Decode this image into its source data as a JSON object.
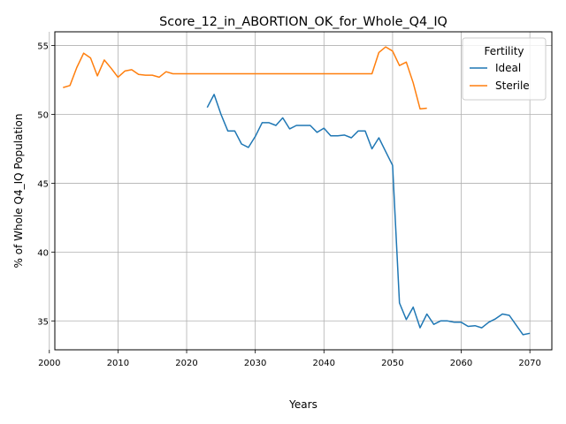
{
  "chart_data": {
    "type": "line",
    "title": "Score_12_in_ABORTION_OK_for_Whole_Q4_IQ",
    "xlabel": "Years",
    "ylabel": "% of Whole Q4_IQ Population",
    "xlim": [
      2000.8,
      2073.2
    ],
    "ylim": [
      32.9,
      56.0
    ],
    "xticks": [
      2000,
      2010,
      2020,
      2030,
      2040,
      2050,
      2060,
      2070
    ],
    "yticks": [
      35,
      40,
      45,
      50,
      55
    ],
    "grid": true,
    "legend": {
      "title": "Fertility",
      "placement": "top-right"
    },
    "series": [
      {
        "name": "Ideal",
        "color": "#1f77b4",
        "x": [
          2023,
          2024,
          2025,
          2026,
          2027,
          2028,
          2029,
          2030,
          2031,
          2032,
          2033,
          2034,
          2035,
          2036,
          2037,
          2038,
          2039,
          2040,
          2041,
          2042,
          2043,
          2044,
          2045,
          2046,
          2047,
          2048,
          2049,
          2050,
          2051,
          2052,
          2053,
          2054,
          2055,
          2056,
          2057,
          2058,
          2059,
          2060,
          2061,
          2062,
          2063,
          2064,
          2065,
          2066,
          2067,
          2068,
          2069,
          2070
        ],
        "y": [
          50.5,
          51.45,
          50.0,
          48.8,
          48.8,
          47.85,
          47.6,
          48.4,
          49.4,
          49.4,
          49.2,
          49.75,
          48.95,
          49.2,
          49.2,
          49.2,
          48.7,
          49.0,
          48.45,
          48.45,
          48.5,
          48.3,
          48.8,
          48.8,
          47.5,
          48.3,
          47.3,
          46.3,
          36.3,
          35.1,
          36.0,
          34.5,
          35.5,
          34.75,
          35.0,
          35.0,
          34.9,
          34.9,
          34.6,
          34.65,
          34.5,
          34.9,
          35.15,
          35.5,
          35.4,
          34.7,
          34.0,
          34.1
        ]
      },
      {
        "name": "Sterile",
        "color": "#ff7f0e",
        "x": [
          2002,
          2003,
          2004,
          2005,
          2006,
          2007,
          2008,
          2009,
          2010,
          2011,
          2012,
          2013,
          2014,
          2015,
          2016,
          2017,
          2018,
          2019,
          2020,
          2021,
          2022,
          2023,
          2024,
          2025,
          2026,
          2027,
          2028,
          2029,
          2030,
          2031,
          2032,
          2033,
          2034,
          2035,
          2036,
          2037,
          2038,
          2039,
          2040,
          2041,
          2042,
          2043,
          2044,
          2045,
          2046,
          2047,
          2048,
          2049,
          2050,
          2051,
          2052,
          2053,
          2054,
          2055
        ],
        "y": [
          51.95,
          52.1,
          53.4,
          54.45,
          54.1,
          52.8,
          53.95,
          53.35,
          52.7,
          53.15,
          53.25,
          52.9,
          52.85,
          52.85,
          52.7,
          53.1,
          52.95,
          52.95,
          52.95,
          52.95,
          52.95,
          52.95,
          52.95,
          52.95,
          52.95,
          52.95,
          52.95,
          52.95,
          52.95,
          52.95,
          52.95,
          52.95,
          52.95,
          52.95,
          52.95,
          52.95,
          52.95,
          52.95,
          52.95,
          52.95,
          52.95,
          52.95,
          52.95,
          52.95,
          52.95,
          52.95,
          54.5,
          54.9,
          54.6,
          53.55,
          53.8,
          52.3,
          50.4,
          50.45
        ]
      }
    ]
  }
}
